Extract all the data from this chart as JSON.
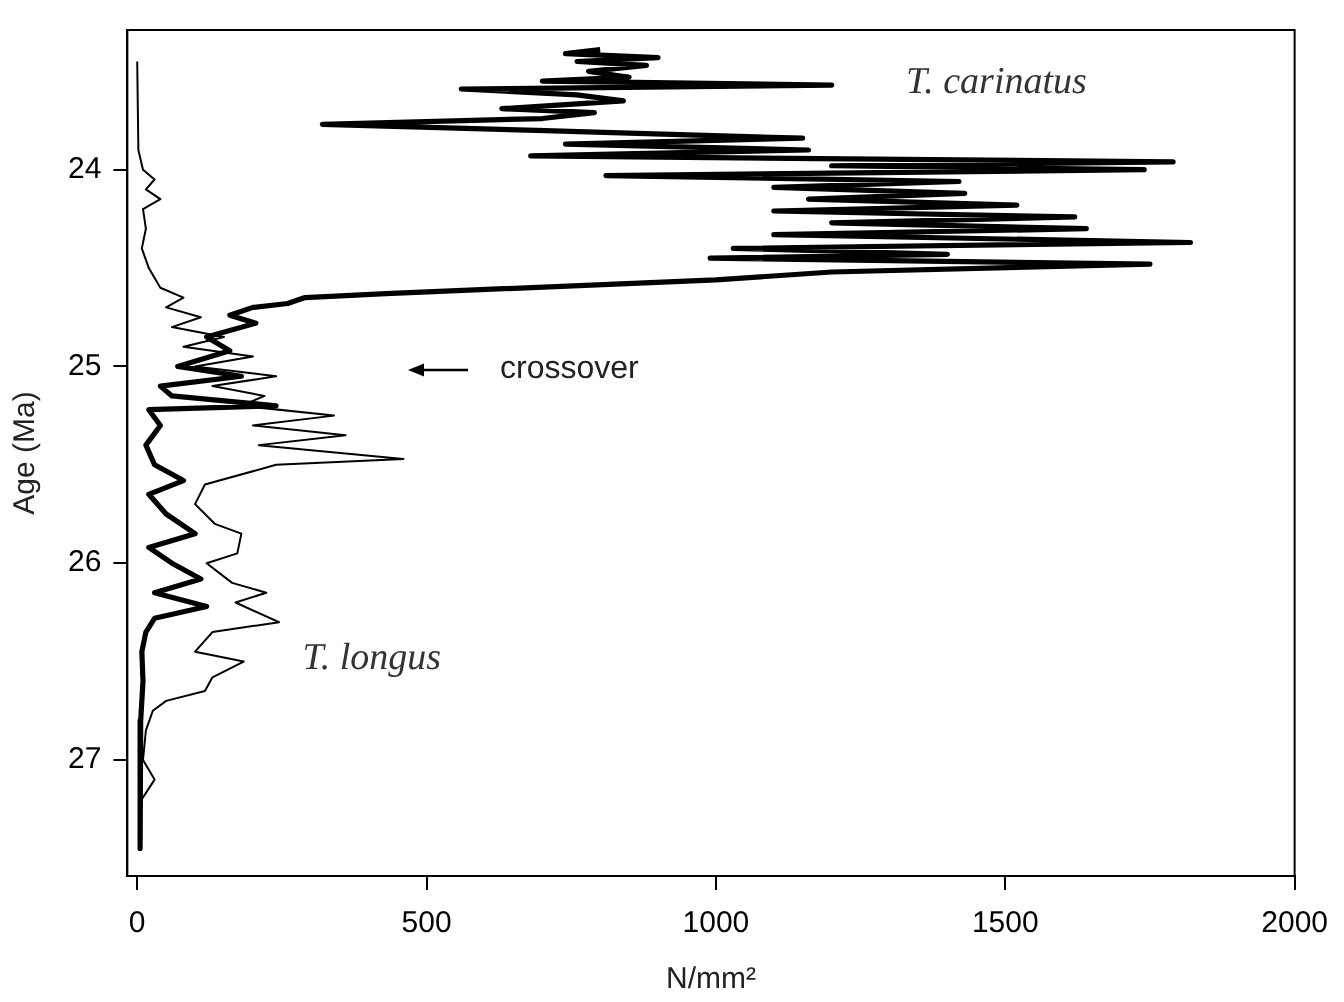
{
  "chart_data": {
    "type": "line",
    "xlabel": "N/mm²",
    "ylabel": "Age (Ma)",
    "xlim": [
      -17,
      2000
    ],
    "xticks": [
      0,
      500,
      1000,
      1500,
      2000
    ],
    "ylim": [
      27.59,
      23.29
    ],
    "yticks": [
      24,
      25,
      26,
      27
    ],
    "grid": false,
    "legend": false,
    "marker": "none",
    "line_style": "solid",
    "annotations": [
      "crossover"
    ],
    "series": [
      {
        "name": "T. carinatus",
        "color": "#000000",
        "x": [
          800,
          740,
          900,
          760,
          880,
          780,
          850,
          700,
          1200,
          560,
          760,
          840,
          630,
          790,
          700,
          320,
          690,
          1150,
          740,
          1160,
          680,
          1790,
          1200,
          1740,
          810,
          1420,
          1100,
          1430,
          1160,
          1520,
          1100,
          1620,
          1200,
          1640,
          1100,
          1820,
          1030,
          1400,
          990,
          1750,
          1200,
          1000,
          430,
          290,
          260,
          200,
          160,
          205,
          120,
          160,
          70,
          180,
          40,
          60,
          240,
          20,
          40,
          15,
          30,
          80,
          20,
          50,
          100,
          20,
          60,
          110,
          30,
          120,
          30,
          15,
          8,
          10,
          6,
          5
        ],
        "values": [
          23.39,
          23.41,
          23.43,
          23.45,
          23.47,
          23.5,
          23.53,
          23.55,
          23.57,
          23.59,
          23.62,
          23.65,
          23.69,
          23.71,
          23.74,
          23.77,
          23.8,
          23.84,
          23.87,
          23.9,
          23.93,
          23.96,
          23.98,
          24.0,
          24.03,
          24.06,
          24.09,
          24.12,
          24.15,
          24.18,
          24.21,
          24.24,
          24.27,
          24.3,
          24.33,
          24.37,
          24.4,
          24.43,
          24.45,
          24.48,
          24.52,
          24.56,
          24.63,
          24.65,
          24.68,
          24.7,
          24.74,
          24.78,
          24.85,
          24.92,
          25.0,
          25.05,
          25.1,
          25.15,
          25.2,
          25.22,
          25.3,
          25.4,
          25.5,
          25.58,
          25.65,
          25.75,
          25.85,
          25.92,
          26.0,
          26.08,
          26.15,
          26.22,
          26.28,
          26.35,
          26.45,
          26.6,
          26.8,
          27.45
        ]
      },
      {
        "name": "T. longus",
        "color": "#000000",
        "x": [
          0,
          2,
          10,
          30,
          15,
          40,
          10,
          15,
          8,
          20,
          40,
          80,
          50,
          110,
          60,
          150,
          80,
          200,
          100,
          240,
          130,
          220,
          180,
          340,
          200,
          360,
          210,
          460,
          240,
          117,
          100,
          134,
          180,
          173,
          120,
          164,
          223,
          170,
          245,
          130,
          100,
          184,
          130,
          117,
          50,
          27,
          15,
          10,
          30,
          8,
          5
        ],
        "values": [
          23.45,
          23.9,
          24.0,
          24.05,
          24.1,
          24.15,
          24.2,
          24.3,
          24.4,
          24.5,
          24.6,
          24.65,
          24.7,
          24.75,
          24.8,
          24.85,
          24.9,
          24.95,
          25.0,
          25.05,
          25.1,
          25.15,
          25.2,
          25.25,
          25.3,
          25.35,
          25.4,
          25.47,
          25.5,
          25.6,
          25.7,
          25.8,
          25.85,
          25.95,
          26.0,
          26.1,
          26.15,
          26.2,
          26.3,
          26.35,
          26.45,
          26.5,
          26.58,
          26.65,
          26.7,
          26.75,
          26.85,
          27.0,
          27.1,
          27.2,
          27.45
        ]
      }
    ]
  }
}
